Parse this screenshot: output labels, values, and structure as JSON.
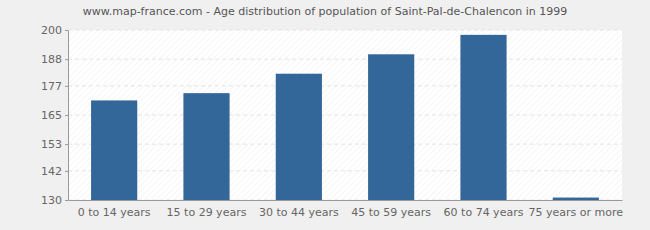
{
  "chart_data": {
    "type": "bar",
    "title": "www.map-france.com - Age distribution of population of Saint-Pal-de-Chalencon in 1999",
    "categories": [
      "0 to 14 years",
      "15 to 29 years",
      "30 to 44 years",
      "45 to 59 years",
      "60 to 74 years",
      "75 years or more"
    ],
    "values": [
      171,
      174,
      182,
      190,
      198,
      131
    ],
    "color": "#336699",
    "ylim": [
      130,
      200
    ],
    "yticks": [
      130,
      142,
      153,
      165,
      177,
      188,
      200
    ],
    "grid": true
  }
}
